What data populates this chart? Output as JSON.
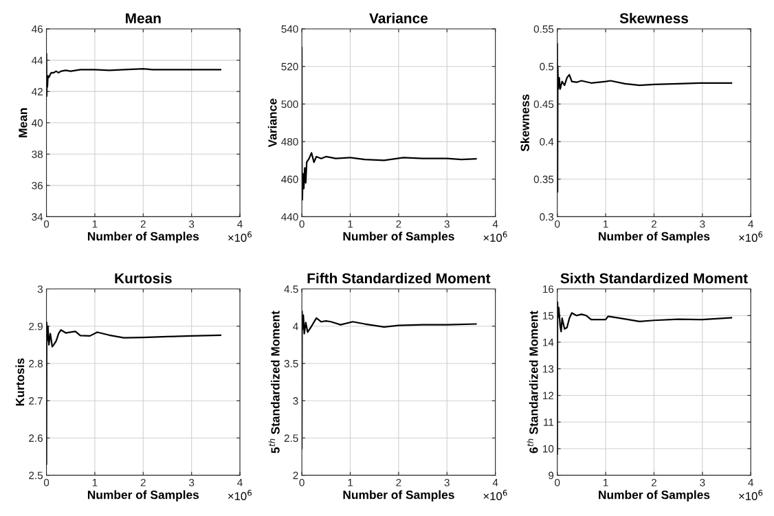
{
  "chart_data": [
    {
      "type": "line",
      "title": "Mean",
      "xlabel": "Number of Samples",
      "ylabel": "Mean",
      "annotations": [
        "×10$^{6}$"
      ],
      "xlim": [
        0,
        4
      ],
      "xticks": [
        0,
        1,
        2,
        3,
        4
      ],
      "ylim": [
        34,
        46
      ],
      "yticks": [
        34,
        36,
        38,
        40,
        42,
        44,
        46
      ],
      "grid": true,
      "series": [
        {
          "color": "#000000",
          "x": [
            0,
            0.005,
            0.01,
            0.02,
            0.03,
            0.05,
            0.08,
            0.1,
            0.15,
            0.2,
            0.25,
            0.3,
            0.4,
            0.5,
            0.7,
            1.0,
            1.3,
            1.6,
            2.0,
            2.2,
            2.5,
            3.0,
            3.3,
            3.6
          ],
          "values": [
            44.4,
            41.7,
            42.6,
            42.3,
            43.0,
            42.9,
            43.1,
            43.2,
            43.2,
            43.3,
            43.2,
            43.3,
            43.35,
            43.3,
            43.4,
            43.4,
            43.35,
            43.4,
            43.45,
            43.4,
            43.4,
            43.4,
            43.4,
            43.4
          ]
        }
      ]
    },
    {
      "type": "line",
      "title": "Variance",
      "xlabel": "Number of Samples",
      "ylabel": "Variance",
      "annotations": [
        "×10$^{6}$"
      ],
      "xlim": [
        0,
        4
      ],
      "xticks": [
        0,
        1,
        2,
        3,
        4
      ],
      "ylim": [
        440,
        540
      ],
      "yticks": [
        440,
        460,
        480,
        500,
        520,
        540
      ],
      "grid": true,
      "series": [
        {
          "color": "#000000",
          "x": [
            0,
            0.003,
            0.01,
            0.02,
            0.04,
            0.06,
            0.08,
            0.1,
            0.15,
            0.2,
            0.25,
            0.3,
            0.4,
            0.5,
            0.7,
            1.0,
            1.3,
            1.7,
            2.1,
            2.5,
            3.0,
            3.3,
            3.6
          ],
          "values": [
            530,
            462,
            449,
            463,
            455,
            466,
            458,
            469,
            471,
            474,
            469,
            472,
            471,
            472,
            471,
            471.5,
            470.5,
            470,
            471.5,
            471,
            471,
            470.5,
            470.8
          ]
        }
      ]
    },
    {
      "type": "line",
      "title": "Skewness",
      "xlabel": "Number of Samples",
      "ylabel": "Skewness",
      "annotations": [
        "×10$^{6}$"
      ],
      "xlim": [
        0,
        4
      ],
      "xticks": [
        0,
        1,
        2,
        3,
        4
      ],
      "ylim": [
        0.3,
        0.55
      ],
      "yticks": [
        0.3,
        0.35,
        0.4,
        0.45,
        0.5,
        0.55
      ],
      "grid": true,
      "series": [
        {
          "color": "#000000",
          "x": [
            0,
            0.005,
            0.01,
            0.02,
            0.04,
            0.06,
            0.1,
            0.15,
            0.2,
            0.25,
            0.3,
            0.4,
            0.5,
            0.7,
            1.0,
            1.1,
            1.4,
            1.7,
            2.0,
            2.5,
            3.0,
            3.6
          ],
          "values": [
            0.53,
            0.333,
            0.5,
            0.47,
            0.485,
            0.47,
            0.48,
            0.475,
            0.485,
            0.489,
            0.48,
            0.479,
            0.481,
            0.478,
            0.48,
            0.481,
            0.477,
            0.475,
            0.476,
            0.477,
            0.478,
            0.478
          ]
        }
      ]
    },
    {
      "type": "line",
      "title": "Kurtosis",
      "xlabel": "Number of Samples",
      "ylabel": "Kurtosis",
      "annotations": [
        "×10$^{6}$"
      ],
      "xlim": [
        0,
        4
      ],
      "xticks": [
        0,
        1,
        2,
        3,
        4
      ],
      "ylim": [
        2.5,
        3
      ],
      "yticks": [
        2.5,
        2.6,
        2.7,
        2.8,
        2.9,
        3
      ],
      "grid": true,
      "series": [
        {
          "color": "#000000",
          "x": [
            0,
            0.005,
            0.01,
            0.03,
            0.05,
            0.08,
            0.12,
            0.15,
            0.2,
            0.25,
            0.3,
            0.4,
            0.5,
            0.6,
            0.7,
            0.9,
            1.05,
            1.3,
            1.6,
            2.0,
            2.5,
            3.0,
            3.6
          ],
          "values": [
            2.53,
            2.91,
            2.86,
            2.9,
            2.85,
            2.88,
            2.845,
            2.85,
            2.86,
            2.88,
            2.89,
            2.882,
            2.884,
            2.886,
            2.875,
            2.874,
            2.884,
            2.876,
            2.869,
            2.87,
            2.872,
            2.874,
            2.876
          ]
        }
      ]
    },
    {
      "type": "line",
      "title": "Fifth Standardized Moment",
      "xlabel": "Number of Samples",
      "ylabel": "5$^{th}$ Standardized Moment",
      "annotations": [
        "×10$^{6}$"
      ],
      "xlim": [
        0,
        4
      ],
      "xticks": [
        0,
        1,
        2,
        3,
        4
      ],
      "ylim": [
        2,
        4.5
      ],
      "yticks": [
        2,
        2.5,
        3,
        3.5,
        4,
        4.5
      ],
      "grid": true,
      "series": [
        {
          "color": "#000000",
          "x": [
            0,
            0.005,
            0.01,
            0.03,
            0.05,
            0.08,
            0.12,
            0.15,
            0.2,
            0.3,
            0.4,
            0.5,
            0.6,
            0.8,
            1.05,
            1.3,
            1.7,
            2.0,
            2.5,
            3.0,
            3.6
          ],
          "values": [
            2.36,
            4.2,
            3.95,
            4.15,
            3.9,
            4.05,
            3.92,
            3.95,
            4.0,
            4.11,
            4.06,
            4.07,
            4.06,
            4.02,
            4.06,
            4.03,
            3.99,
            4.01,
            4.02,
            4.02,
            4.03
          ]
        }
      ]
    },
    {
      "type": "line",
      "title": "Sixth Standardized Moment",
      "xlabel": "Number of Samples",
      "ylabel": "6$^{th}$ Standardized Moment",
      "annotations": [
        "×10$^{6}$"
      ],
      "xlim": [
        0,
        4
      ],
      "xticks": [
        0,
        1,
        2,
        3,
        4
      ],
      "ylim": [
        9,
        16
      ],
      "yticks": [
        9,
        10,
        11,
        12,
        13,
        14,
        15,
        16
      ],
      "grid": true,
      "series": [
        {
          "color": "#000000",
          "x": [
            0,
            0.005,
            0.01,
            0.03,
            0.06,
            0.08,
            0.1,
            0.15,
            0.2,
            0.25,
            0.3,
            0.4,
            0.5,
            0.6,
            0.7,
            1.0,
            1.05,
            1.3,
            1.7,
            2.0,
            2.5,
            3.0,
            3.6
          ],
          "values": [
            9.8,
            15.5,
            14.9,
            15.3,
            14.6,
            14.4,
            14.9,
            14.5,
            14.55,
            14.9,
            15.1,
            15.0,
            15.05,
            15.0,
            14.85,
            14.85,
            14.97,
            14.9,
            14.78,
            14.82,
            14.86,
            14.85,
            14.92
          ]
        }
      ]
    }
  ]
}
